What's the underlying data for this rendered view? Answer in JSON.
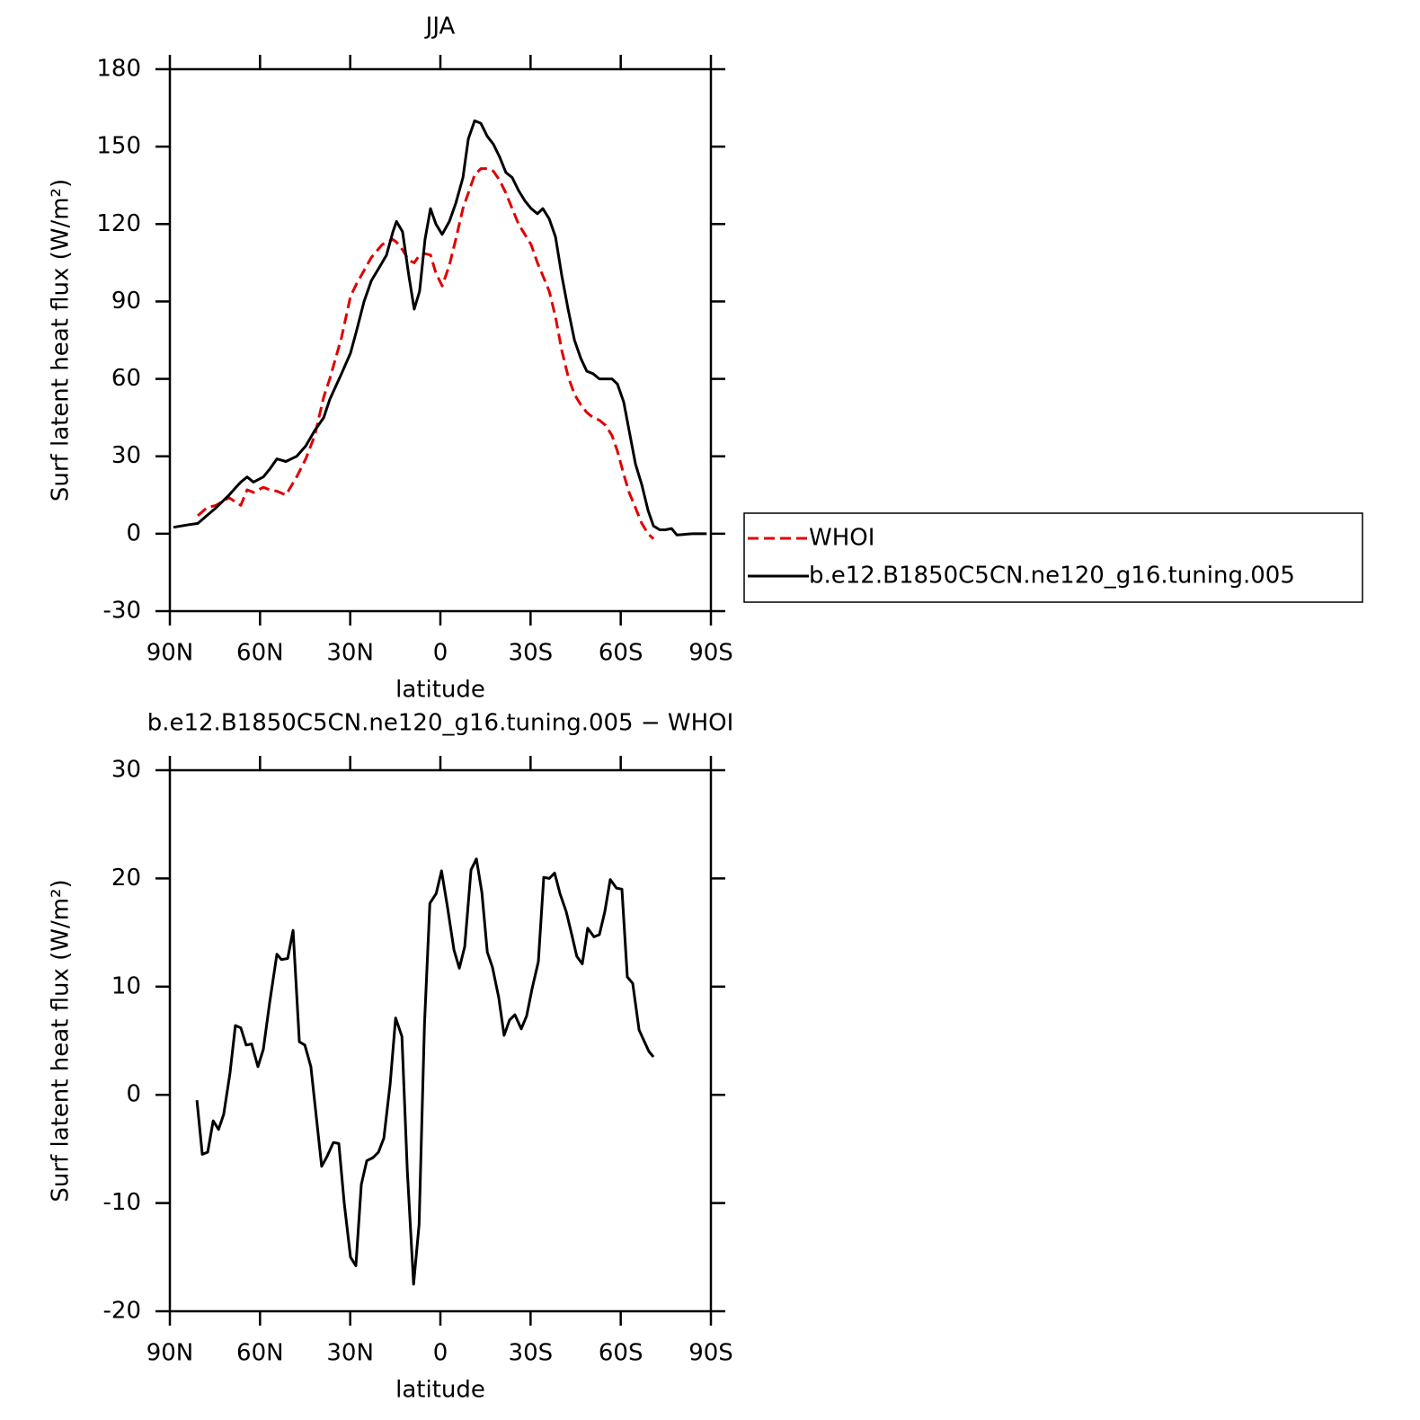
{
  "chart_data": [
    {
      "type": "line",
      "title": "JJA",
      "xlabel": "latitude",
      "ylabel": "Surf latent heat flux (W/m²)",
      "x": [
        88.8,
        83.7,
        80.7,
        77.7,
        74.7,
        70.3,
        66.4,
        64.3,
        62.2,
        58.9,
        56.8,
        54.4,
        51.4,
        47.8,
        44.8,
        41.8,
        38.8,
        36.8,
        32.9,
        29.9,
        27.8,
        25.4,
        23.0,
        19.4,
        17.9,
        15.8,
        14.6,
        12.6,
        10.5,
        8.7,
        6.9,
        5.1,
        3.3,
        1.5,
        -0.6,
        -3.0,
        -5.1,
        -7.5,
        -9.3,
        -11.4,
        -13.5,
        -15.6,
        -17.6,
        -19.7,
        -21.8,
        -23.9,
        -26.0,
        -28.1,
        -30.2,
        -32.3,
        -34.1,
        -36.2,
        -38.3,
        -40.4,
        -42.5,
        -44.6,
        -46.7,
        -48.7,
        -50.8,
        -52.9,
        -55.0,
        -57.1,
        -58.9,
        -61.0,
        -62.8,
        -64.9,
        -67.0,
        -69.1,
        -70.9,
        -73.0,
        -74.8,
        -76.9,
        -78.7,
        -80.8,
        -83.8,
        -88.6
      ],
      "xlim": [
        90,
        -90
      ],
      "xticks": [
        {
          "value": 90,
          "label": "90N"
        },
        {
          "value": 60,
          "label": "60N"
        },
        {
          "value": 30,
          "label": "30N"
        },
        0,
        {
          "value": -30,
          "label": "30S"
        },
        {
          "value": -60,
          "label": "60S"
        },
        {
          "value": -90,
          "label": "90S"
        }
      ],
      "ylim": [
        -30,
        180
      ],
      "yticks": [
        -30,
        0,
        30,
        60,
        90,
        120,
        150,
        180
      ],
      "legend": "right",
      "series": [
        {
          "name": "WHOI",
          "color": "#e00000",
          "dash": "dashed",
          "values": [
            null,
            null,
            7,
            10,
            11,
            14,
            11,
            17,
            16,
            18,
            17,
            16.5,
            15,
            22,
            29,
            38,
            53,
            60,
            76,
            92,
            97,
            102,
            107,
            112,
            113,
            114,
            113,
            110,
            106,
            105,
            108,
            108.5,
            108,
            101,
            96,
            104,
            114,
            126,
            132,
            139,
            141.5,
            141.5,
            140.5,
            137,
            132,
            126,
            120,
            116,
            112,
            105,
            100,
            94,
            84,
            71,
            61,
            54,
            50,
            47,
            45,
            44,
            42,
            38,
            32,
            23,
            16,
            10,
            4,
            0,
            -2,
            null,
            null,
            null,
            null,
            null,
            null,
            null
          ]
        },
        {
          "name": "b.e12.B1850C5CN.ne120_g16.tuning.005",
          "color": "#000000",
          "dash": "solid",
          "values": [
            2.5,
            3.5,
            4,
            7,
            10,
            15,
            20,
            22,
            20,
            22,
            25,
            29,
            28,
            30,
            34,
            40,
            45,
            52,
            62,
            70,
            79,
            90,
            98,
            105,
            108,
            117,
            121,
            117,
            100,
            87,
            94,
            114,
            126,
            120,
            116,
            121,
            128,
            138,
            153,
            160,
            159,
            154,
            151,
            146,
            140,
            138,
            133,
            129,
            126,
            124,
            126,
            122,
            115,
            100,
            87,
            75,
            68,
            63,
            62,
            60,
            60,
            60,
            58,
            51,
            40,
            27,
            19,
            9,
            3,
            1.5,
            1.5,
            2,
            -0.5,
            -0.3,
            0,
            0
          ]
        }
      ]
    },
    {
      "type": "line",
      "title": "b.e12.B1850C5CN.ne120_g16.tuning.005 − WHOI",
      "xlabel": "latitude",
      "ylabel": "Surf latent heat flux (W/m²)",
      "x": [
        81.0,
        79.2,
        77.4,
        75.6,
        73.8,
        72.1,
        70.0,
        68.2,
        66.4,
        64.6,
        62.8,
        60.7,
        58.9,
        56.8,
        54.4,
        52.9,
        50.8,
        49.0,
        46.9,
        45.1,
        43.1,
        41.3,
        39.5,
        37.7,
        35.6,
        33.8,
        32.0,
        29.9,
        28.1,
        26.3,
        24.5,
        22.4,
        20.6,
        18.8,
        16.7,
        14.9,
        12.8,
        11.0,
        8.9,
        7.1,
        5.3,
        3.5,
        1.4,
        -0.4,
        -2.4,
        -4.5,
        -6.3,
        -8.1,
        -10.2,
        -12.0,
        -13.8,
        -15.6,
        -17.3,
        -19.4,
        -21.2,
        -23.0,
        -24.8,
        -26.9,
        -28.7,
        -30.5,
        -32.6,
        -34.4,
        -36.2,
        -38.0,
        -39.8,
        -41.9,
        -43.7,
        -45.4,
        -47.2,
        -49.0,
        -51.1,
        -52.9,
        -54.7,
        -56.5,
        -58.6,
        -60.4,
        -62.2,
        -64.0,
        -66.1,
        -67.9,
        -69.4,
        -70.9
      ],
      "xlim": [
        90,
        -90
      ],
      "xticks": [
        {
          "value": 90,
          "label": "90N"
        },
        {
          "value": 60,
          "label": "60N"
        },
        {
          "value": 30,
          "label": "30N"
        },
        0,
        {
          "value": -30,
          "label": "30S"
        },
        {
          "value": -60,
          "label": "60S"
        },
        {
          "value": -90,
          "label": "90S"
        }
      ],
      "ylim": [
        -20,
        30
      ],
      "yticks": [
        -20,
        -10,
        0,
        10,
        20,
        30
      ],
      "series": [
        {
          "color": "#000000",
          "dash": "solid",
          "values": [
            -0.5,
            -5.5,
            -5.3,
            -2.4,
            -3.2,
            -1.8,
            2,
            6.4,
            6.2,
            4.6,
            4.7,
            2.6,
            4.2,
            8.5,
            13,
            12.5,
            12.6,
            15.2,
            4.9,
            4.6,
            2.6,
            -2,
            -6.6,
            -5.7,
            -4.4,
            -4.5,
            -10,
            -15,
            -15.8,
            -8.3,
            -6.1,
            -5.8,
            -5.3,
            -4,
            1,
            7.1,
            5.4,
            -7,
            -17.5,
            -12,
            6.5,
            17.7,
            18.6,
            20.7,
            17.3,
            13.4,
            11.7,
            13.7,
            20.8,
            21.8,
            18.7,
            13.2,
            11.8,
            9,
            5.5,
            6.9,
            7.4,
            6.1,
            7.3,
            9.8,
            12.3,
            20.1,
            20,
            20.5,
            18.6,
            16.9,
            14.8,
            12.8,
            12.1,
            15.4,
            14.6,
            14.8,
            16.9,
            19.9,
            19.1,
            19,
            10.9,
            10.3,
            6,
            4.9,
            4,
            3.5
          ]
        }
      ]
    }
  ]
}
